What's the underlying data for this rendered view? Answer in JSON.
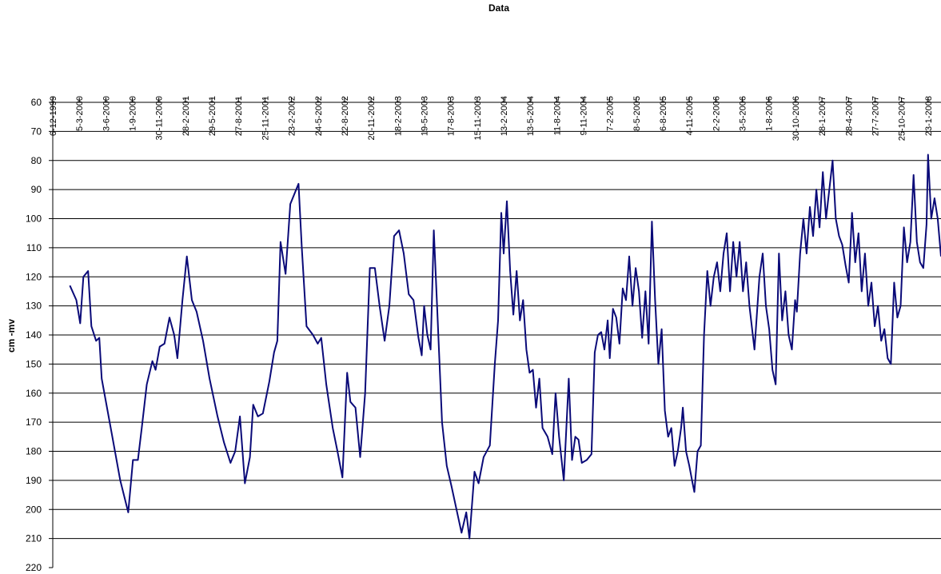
{
  "chart_data": {
    "type": "line",
    "x_title": "Data",
    "y_title": "cm -mv",
    "color": "#0a0a78",
    "grid": true,
    "xlim": [
      "6-12-1999",
      "7-3-2008"
    ],
    "xticks": [
      "6-12-1999",
      "5-3-2000",
      "3-6-2000",
      "1-9-2000",
      "30-11-2000",
      "28-2-2001",
      "29-5-2001",
      "27-8-2001",
      "25-11-2001",
      "23-2-2002",
      "24-5-2002",
      "22-8-2002",
      "20-11-2002",
      "18-2-2003",
      "19-5-2003",
      "17-8-2003",
      "15-11-2003",
      "13-2-2004",
      "13-5-2004",
      "11-8-2004",
      "9-11-2004",
      "7-2-2005",
      "8-5-2005",
      "6-8-2005",
      "4-11-2005",
      "2-2-2006",
      "3-5-2006",
      "1-8-2006",
      "30-10-2006",
      "28-1-2007",
      "28-4-2007",
      "27-7-2007",
      "25-10-2007",
      "23-1-2008"
    ],
    "ylim": [
      220,
      60
    ],
    "yticks": [
      60,
      70,
      80,
      90,
      100,
      110,
      120,
      130,
      140,
      150,
      160,
      170,
      180,
      190,
      200,
      210,
      220
    ],
    "x": [
      "2-2-2000",
      "24-2-2000",
      "8-3-2000",
      "19-3-2000",
      "4-4-2000",
      "15-4-2000",
      "1-5-2000",
      "12-5-2000",
      "20-5-2000",
      "25-6-2000",
      "22-7-2000",
      "18-8-2000",
      "3-9-2000",
      "20-9-2000",
      "3-10-2000",
      "20-10-2000",
      "8-11-2000",
      "19-11-2000",
      "3-12-2000",
      "19-12-2000",
      "5-1-2001",
      "21-1-2001",
      "1-2-2001",
      "18-2-2001",
      "5-3-2001",
      "22-3-2001",
      "7-4-2001",
      "29-4-2001",
      "21-5-2001",
      "17-6-2001",
      "9-7-2001",
      "31-7-2001",
      "16-8-2001",
      "1-9-2001",
      "18-9-2001",
      "5-10-2001",
      "16-10-2001",
      "1-11-2001",
      "18-11-2001",
      "10-12-2001",
      "26-12-2001",
      "6-1-2002",
      "17-1-2002",
      "3-2-2002",
      "19-2-2002",
      "19-3-2002",
      "30-3-2002",
      "15-4-2002",
      "7-5-2002",
      "23-5-2002",
      "4-6-2002",
      "21-6-2002",
      "13-7-2002",
      "29-7-2002",
      "15-8-2002",
      "31-8-2002",
      "11-9-2002",
      "28-9-2002",
      "14-10-2002",
      "31-10-2002",
      "16-11-2002",
      "3-12-2002",
      "19-12-2002",
      "5-1-2003",
      "21-1-2003",
      "6-2-2003",
      "23-2-2003",
      "11-3-2003",
      "28-3-2003",
      "13-4-2003",
      "30-4-2003",
      "11-5-2003",
      "19-5-2003",
      "30-5-2003",
      "10-6-2003",
      "21-6-2003",
      "2-7-2003",
      "19-7-2003",
      "4-8-2003",
      "20-8-2003",
      "6-9-2003",
      "23-9-2003",
      "9-10-2003",
      "20-10-2003",
      "6-11-2003",
      "20-11-2003",
      "7-12-2003",
      "28-12-2003",
      "14-1-2004",
      "25-1-2004",
      "5-2-2004",
      "13-2-2004",
      "24-2-2004",
      "6-3-2004",
      "17-3-2004",
      "28-3-2004",
      "8-4-2004",
      "19-4-2004",
      "30-4-2004",
      "11-5-2004",
      "22-5-2004",
      "2-6-2004",
      "13-6-2004",
      "24-6-2004",
      "11-7-2004",
      "27-7-2004",
      "7-8-2004",
      "19-8-2004",
      "4-9-2004",
      "21-9-2004",
      "2-10-2004",
      "13-10-2004",
      "24-10-2004",
      "4-11-2004",
      "21-11-2004",
      "7-12-2004",
      "18-12-2004",
      "29-12-2004",
      "9-1-2005",
      "20-1-2005",
      "31-1-2005",
      "7-2-2005",
      "18-2-2005",
      "1-3-2005",
      "12-3-2005",
      "23-3-2005",
      "3-4-2005",
      "14-4-2005",
      "25-4-2005",
      "6-5-2005",
      "17-5-2005",
      "28-5-2005",
      "8-6-2005",
      "19-6-2005",
      "30-6-2005",
      "11-7-2005",
      "22-7-2005",
      "2-8-2005",
      "13-8-2005",
      "24-8-2005",
      "4-9-2005",
      "15-9-2005",
      "26-9-2005",
      "7-10-2005",
      "13-10-2005",
      "24-10-2005",
      "4-11-2005",
      "15-11-2005",
      "21-11-2005",
      "2-12-2005",
      "13-12-2005",
      "24-12-2005",
      "4-1-2006",
      "15-1-2006",
      "26-1-2006",
      "6-2-2006",
      "17-2-2006",
      "28-2-2006",
      "11-3-2006",
      "22-3-2006",
      "2-4-2006",
      "13-4-2006",
      "24-4-2006",
      "5-5-2006",
      "16-5-2006",
      "27-5-2006",
      "13-6-2006",
      "30-6-2006",
      "11-7-2006",
      "22-7-2006",
      "2-8-2006",
      "13-8-2006",
      "24-8-2006",
      "4-9-2006",
      "15-9-2006",
      "26-9-2006",
      "7-10-2006",
      "18-10-2006",
      "29-10-2006",
      "4-11-2006",
      "15-11-2006",
      "26-11-2006",
      "7-12-2006",
      "18-12-2006",
      "29-12-2006",
      "9-1-2007",
      "20-1-2007",
      "31-1-2007",
      "11-2-2007",
      "22-2-2007",
      "5-3-2007",
      "16-3-2007",
      "27-3-2007",
      "7-4-2007",
      "18-4-2007",
      "29-4-2007",
      "10-5-2007",
      "21-5-2007",
      "1-6-2007",
      "12-6-2007",
      "23-6-2007",
      "4-7-2007",
      "15-7-2007",
      "26-7-2007",
      "6-8-2007",
      "17-8-2007",
      "28-8-2007",
      "8-9-2007",
      "19-9-2007",
      "30-9-2007",
      "11-10-2007",
      "22-10-2007",
      "2-11-2007",
      "13-11-2007",
      "24-11-2007",
      "5-12-2007",
      "16-12-2007",
      "27-12-2007",
      "7-1-2008",
      "18-1-2008",
      "23-1-2008",
      "3-2-2008",
      "14-2-2008",
      "25-2-2008",
      "7-3-2008"
    ],
    "values": [
      123,
      128,
      136,
      120,
      118,
      137,
      142,
      141,
      155,
      175,
      190,
      201,
      183,
      183,
      172,
      157,
      149,
      152,
      144,
      143,
      134,
      140,
      148,
      128,
      113,
      128,
      132,
      142,
      155,
      168,
      177,
      184,
      180,
      168,
      191,
      182,
      164,
      168,
      167,
      156,
      146,
      142,
      108,
      119,
      95,
      88,
      110,
      137,
      140,
      143,
      141,
      157,
      172,
      180,
      189,
      153,
      163,
      165,
      182,
      160,
      117,
      117,
      130,
      142,
      130,
      106,
      104,
      112,
      126,
      128,
      141,
      147,
      130,
      140,
      145,
      104,
      130,
      170,
      185,
      192,
      200,
      208,
      201,
      210,
      187,
      191,
      182,
      178,
      150,
      135,
      98,
      112,
      94,
      118,
      133,
      118,
      135,
      128,
      145,
      153,
      152,
      165,
      155,
      172,
      175,
      181,
      160,
      175,
      190,
      155,
      183,
      175,
      176,
      184,
      183,
      181,
      146,
      140,
      139,
      145,
      135,
      148,
      131,
      134,
      143,
      124,
      128,
      113,
      130,
      117,
      125,
      141,
      125,
      143,
      101,
      128,
      150,
      138,
      166,
      175,
      172,
      185,
      180,
      172,
      165,
      180,
      185,
      191,
      194,
      180,
      178,
      140,
      118,
      130,
      120,
      115,
      125,
      112,
      105,
      125,
      108,
      120,
      108,
      125,
      115,
      130,
      145,
      120,
      112,
      130,
      138,
      152,
      157,
      112,
      135,
      125,
      140,
      145,
      128,
      132,
      112,
      100,
      112,
      96,
      106,
      90,
      103,
      84,
      100,
      90,
      80,
      100,
      106,
      109,
      116,
      122,
      98,
      115,
      105,
      125,
      112,
      130,
      122,
      137,
      130,
      142,
      138,
      148,
      150,
      122,
      134,
      130,
      103,
      115,
      108,
      85,
      108,
      115,
      117,
      102,
      78,
      100,
      93,
      100,
      113
    ]
  }
}
